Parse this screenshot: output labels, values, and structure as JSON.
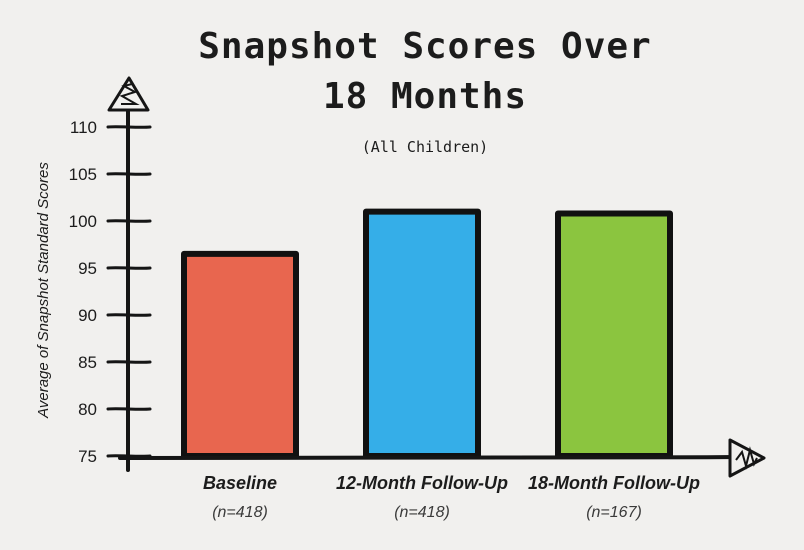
{
  "chart_data": {
    "type": "bar",
    "title_lines": [
      "Snapshot Scores Over",
      "18 Months"
    ],
    "subtitle": "(All Children)",
    "ylabel": "Average of Snapshot Standard Scores",
    "xlabel": "",
    "ylim": [
      75,
      110
    ],
    "yticks": [
      "75",
      "80",
      "85",
      "90",
      "95",
      "100",
      "105",
      "110"
    ],
    "categories": [
      "Baseline",
      "12-Month Follow-Up",
      "18-Month Follow-Up"
    ],
    "category_notes": [
      "(n=418)",
      "(n=418)",
      "(n=167)"
    ],
    "values": [
      96.5,
      101,
      100.8
    ],
    "colors": [
      "#e8664f",
      "#35aee8",
      "#8bc53f"
    ],
    "grid": false,
    "legend": "none"
  }
}
